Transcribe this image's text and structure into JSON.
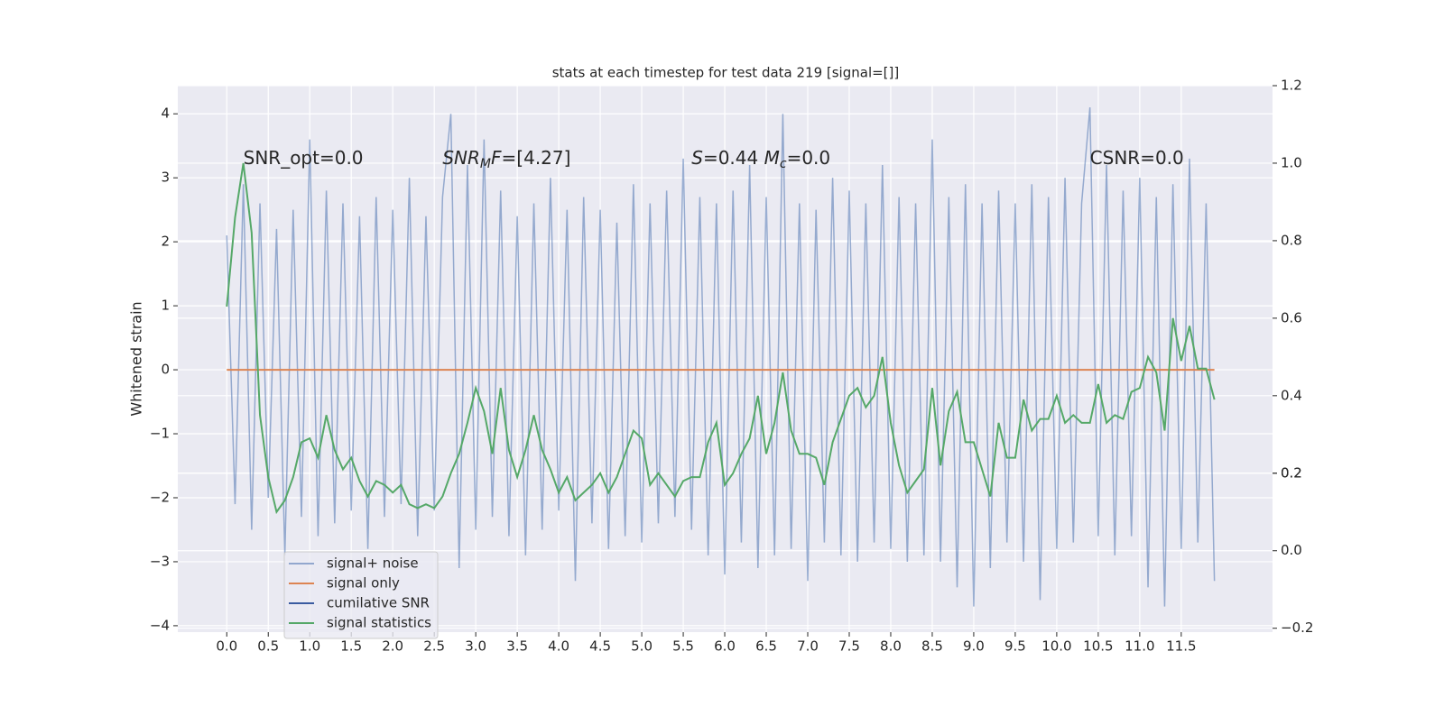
{
  "chart_data": {
    "type": "line",
    "title": "stats at each timestep for test data 219 [signal=[]]",
    "ylabel": "Whitened strain",
    "x": [
      0,
      0.1,
      0.2,
      0.3,
      0.4,
      0.5,
      0.6,
      0.7,
      0.8,
      0.9,
      1,
      1.1,
      1.2,
      1.3,
      1.4,
      1.5,
      1.6,
      1.7,
      1.8,
      1.9,
      2,
      2.1,
      2.2,
      2.3,
      2.4,
      2.5,
      2.6,
      2.7,
      2.8,
      2.9,
      3,
      3.1,
      3.2,
      3.3,
      3.4,
      3.5,
      3.6,
      3.7,
      3.8,
      3.9,
      4,
      4.1,
      4.2,
      4.3,
      4.4,
      4.5,
      4.6,
      4.7,
      4.8,
      4.9,
      5,
      5.1,
      5.2,
      5.3,
      5.4,
      5.5,
      5.6,
      5.7,
      5.8,
      5.9,
      6,
      6.1,
      6.2,
      6.3,
      6.4,
      6.5,
      6.6,
      6.7,
      6.8,
      6.9,
      7,
      7.1,
      7.2,
      7.3,
      7.4,
      7.5,
      7.6,
      7.7,
      7.8,
      7.9,
      8,
      8.1,
      8.2,
      8.3,
      8.4,
      8.5,
      8.6,
      8.7,
      8.8,
      8.9,
      9,
      9.1,
      9.2,
      9.3,
      9.4,
      9.5,
      9.6,
      9.7,
      9.8,
      9.9,
      10,
      10.1,
      10.2,
      10.3,
      10.4,
      10.5,
      10.6,
      10.7,
      10.8,
      10.9,
      11,
      11.1,
      11.2,
      11.3,
      11.4,
      11.5,
      11.6,
      11.7,
      11.8,
      11.9
    ],
    "series": [
      {
        "name": "signal+ noise",
        "color": "#4c72b0",
        "axis": "y",
        "values": [
          2.1,
          -2.1,
          2.9,
          -2.5,
          2.6,
          -2.0,
          2.2,
          -2.9,
          2.5,
          -2.3,
          3.6,
          -2.6,
          2.8,
          -2.4,
          2.6,
          -2.2,
          2.4,
          -2.8,
          2.7,
          -2.3,
          2.5,
          -2.1,
          3.0,
          -2.6,
          2.4,
          -2.2,
          2.7,
          4.0,
          -3.1,
          3.2,
          -2.5,
          3.6,
          -2.3,
          2.8,
          -2.6,
          2.4,
          -2.9,
          2.6,
          -2.5,
          3.0,
          -2.2,
          2.5,
          -3.3,
          2.7,
          -2.4,
          2.5,
          -2.8,
          2.3,
          -2.6,
          2.9,
          -2.7,
          2.6,
          -2.4,
          2.8,
          -2.3,
          3.3,
          -2.5,
          2.7,
          -2.9,
          2.6,
          -3.2,
          2.8,
          -2.7,
          3.2,
          -3.1,
          2.7,
          -2.9,
          4.0,
          -2.8,
          2.6,
          -3.3,
          2.5,
          -2.7,
          3.0,
          -2.9,
          2.8,
          -3.0,
          2.6,
          -2.7,
          3.2,
          -2.8,
          2.7,
          -3.0,
          2.6,
          -2.9,
          3.6,
          -3.0,
          2.7,
          -3.4,
          2.9,
          -3.7,
          2.6,
          -3.1,
          2.8,
          -2.7,
          2.6,
          -3.0,
          2.9,
          -3.6,
          2.7,
          -2.8,
          3.0,
          -2.7,
          2.6,
          4.1,
          -2.6,
          3.2,
          -2.9,
          2.8,
          -2.6,
          3.0,
          -3.4,
          2.7,
          -3.7,
          2.9,
          -2.8,
          3.3,
          -2.7,
          2.6,
          -3.3
        ]
      },
      {
        "name": "signal only",
        "color": "#dd8452",
        "axis": "y",
        "values": [
          0,
          0,
          0,
          0,
          0,
          0,
          0,
          0,
          0,
          0,
          0,
          0,
          0,
          0,
          0,
          0,
          0,
          0,
          0,
          0,
          0,
          0,
          0,
          0,
          0,
          0,
          0,
          0,
          0,
          0,
          0,
          0,
          0,
          0,
          0,
          0,
          0,
          0,
          0,
          0,
          0,
          0,
          0,
          0,
          0,
          0,
          0,
          0,
          0,
          0,
          0,
          0,
          0,
          0,
          0,
          0,
          0,
          0,
          0,
          0,
          0,
          0,
          0,
          0,
          0,
          0,
          0,
          0,
          0,
          0,
          0,
          0,
          0,
          0,
          0,
          0,
          0,
          0,
          0,
          0,
          0,
          0,
          0,
          0,
          0,
          0,
          0,
          0,
          0,
          0,
          0,
          0,
          0,
          0,
          0,
          0,
          0,
          0,
          0,
          0,
          0,
          0,
          0,
          0,
          0,
          0,
          0,
          0,
          0,
          0,
          0,
          0,
          0,
          0,
          0,
          0,
          0,
          0,
          0,
          0
        ]
      },
      {
        "name": "cumilative SNR",
        "color": "#3a5ba0",
        "axis": "y"
      },
      {
        "name": "signal statistics",
        "color": "#55a868",
        "axis": "y2",
        "values": [
          0.63,
          0.86,
          1.0,
          0.82,
          0.35,
          0.19,
          0.1,
          0.13,
          0.19,
          0.28,
          0.29,
          0.24,
          0.35,
          0.26,
          0.21,
          0.24,
          0.18,
          0.14,
          0.18,
          0.17,
          0.15,
          0.17,
          0.12,
          0.11,
          0.12,
          0.11,
          0.14,
          0.2,
          0.25,
          0.33,
          0.42,
          0.36,
          0.25,
          0.42,
          0.26,
          0.19,
          0.26,
          0.35,
          0.26,
          0.21,
          0.15,
          0.19,
          0.13,
          0.15,
          0.17,
          0.2,
          0.15,
          0.19,
          0.25,
          0.31,
          0.29,
          0.17,
          0.2,
          0.17,
          0.14,
          0.18,
          0.19,
          0.19,
          0.28,
          0.33,
          0.17,
          0.2,
          0.25,
          0.29,
          0.4,
          0.25,
          0.33,
          0.46,
          0.31,
          0.25,
          0.25,
          0.24,
          0.17,
          0.28,
          0.34,
          0.4,
          0.42,
          0.37,
          0.4,
          0.5,
          0.33,
          0.22,
          0.15,
          0.18,
          0.21,
          0.42,
          0.22,
          0.36,
          0.41,
          0.28,
          0.28,
          0.21,
          0.14,
          0.33,
          0.24,
          0.24,
          0.39,
          0.31,
          0.34,
          0.34,
          0.4,
          0.33,
          0.35,
          0.33,
          0.33,
          0.43,
          0.33,
          0.35,
          0.34,
          0.41,
          0.42,
          0.5,
          0.46,
          0.31,
          0.6,
          0.49,
          0.58,
          0.47,
          0.47,
          0.39
        ]
      }
    ],
    "annotations": [
      {
        "x": 0.2,
        "y": 3.3,
        "parts": [
          {
            "text": "SNR_opt=0.0"
          }
        ]
      },
      {
        "x": 2.6,
        "y": 3.3,
        "parts": [
          {
            "text": "SNR",
            "italic": true
          },
          {
            "text": "M",
            "italic": true,
            "sub": true
          },
          {
            "text": "F",
            "italic": true
          },
          {
            "text": "=[4.27]"
          }
        ]
      },
      {
        "x": 5.6,
        "y": 3.3,
        "parts": [
          {
            "text": "S",
            "italic": true
          },
          {
            "text": "=0.44   "
          },
          {
            "text": "M",
            "italic": true
          },
          {
            "text": "c",
            "italic": true,
            "sub": true
          },
          {
            "text": "=0.0"
          }
        ]
      },
      {
        "x": 10.4,
        "y": 3.3,
        "parts": [
          {
            "text": "CSNR=0.0"
          }
        ]
      }
    ],
    "xlim": [
      -0.59,
      12.6
    ],
    "ylim": [
      -4.1,
      4.44
    ],
    "y2lim": [
      -0.21,
      1.2
    ],
    "xticks": [
      {
        "value": 0,
        "label": "0.0"
      },
      {
        "value": 0.5,
        "label": "0.5"
      },
      {
        "value": 1,
        "label": "1.0"
      },
      {
        "value": 1.5,
        "label": "1.5"
      },
      {
        "value": 2,
        "label": "2.0"
      },
      {
        "value": 2.5,
        "label": "2.5"
      },
      {
        "value": 3,
        "label": "3.0"
      },
      {
        "value": 3.5,
        "label": "3.5"
      },
      {
        "value": 4,
        "label": "4.0"
      },
      {
        "value": 4.5,
        "label": "4.5"
      },
      {
        "value": 5,
        "label": "5.0"
      },
      {
        "value": 5.5,
        "label": "5.5"
      },
      {
        "value": 6,
        "label": "6.0"
      },
      {
        "value": 6.5,
        "label": "6.5"
      },
      {
        "value": 7,
        "label": "7.0"
      },
      {
        "value": 7.5,
        "label": "7.5"
      },
      {
        "value": 8,
        "label": "8.0"
      },
      {
        "value": 8.5,
        "label": "8.5"
      },
      {
        "value": 9,
        "label": "9.0"
      },
      {
        "value": 9.5,
        "label": "9.5"
      },
      {
        "value": 10,
        "label": "10.0"
      },
      {
        "value": 10.5,
        "label": "10.5"
      },
      {
        "value": 11,
        "label": "11.0"
      },
      {
        "value": 11.5,
        "label": "11.5"
      }
    ],
    "yticks": [
      {
        "value": -4,
        "label": "−4"
      },
      {
        "value": -3,
        "label": "−3"
      },
      {
        "value": -2,
        "label": "−2"
      },
      {
        "value": -1,
        "label": "−1"
      },
      0,
      1,
      2,
      3,
      4
    ],
    "y2ticks": [
      {
        "value": -0.2,
        "label": "−0.2"
      },
      {
        "value": 0,
        "label": "0.0"
      },
      0.2,
      0.4,
      0.6,
      0.8,
      {
        "value": 1,
        "label": "1.0"
      },
      0.2,
      {
        "value": 1.2,
        "label": "1.2"
      }
    ],
    "grid": true,
    "legend": "lower left"
  }
}
